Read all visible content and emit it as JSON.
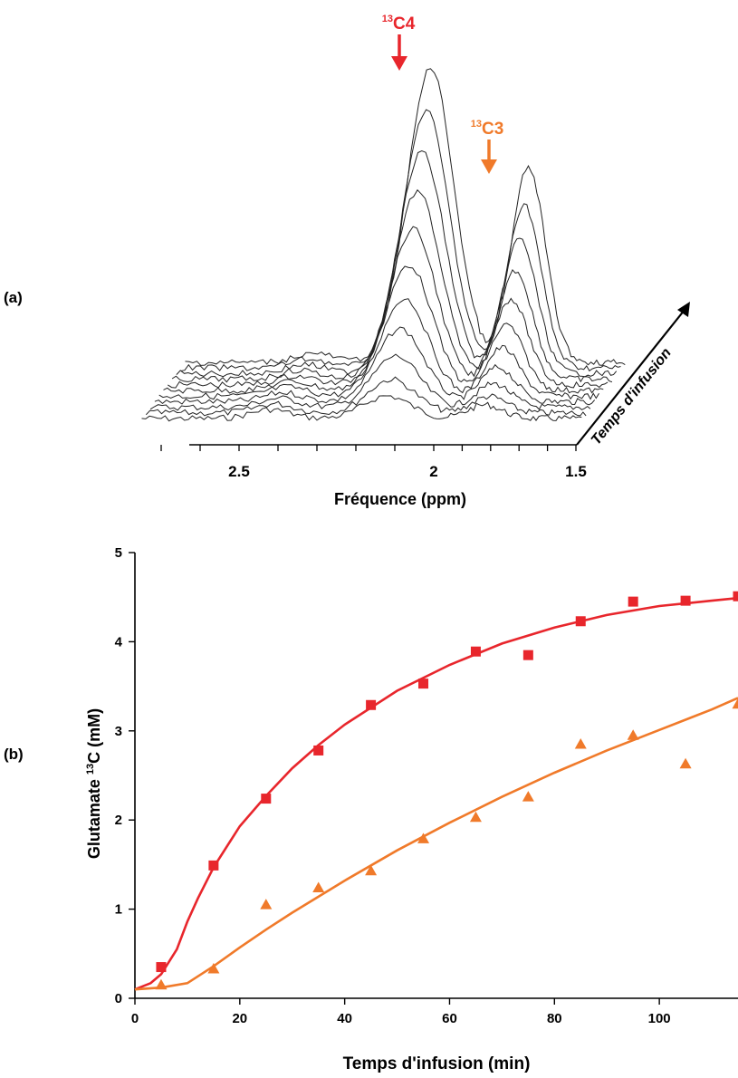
{
  "panel_a": {
    "label": "(a)",
    "peak_c4": {
      "sup": "13",
      "text": "C4",
      "color": "#e8262c"
    },
    "peak_c3": {
      "sup": "13",
      "text": "C3",
      "color": "#f07a2a"
    },
    "time_axis_label": "Temps d'infusion",
    "xlabel": "Fréquence (ppm)",
    "ticks": [
      "2.5",
      "2",
      "1.5"
    ]
  },
  "panel_b": {
    "label": "(b)",
    "ylabel_pre": "Glutamate ",
    "ylabel_sup": "13",
    "ylabel_post": "C (mM)"
  },
  "chart_data": [
    {
      "type": "line",
      "title": "",
      "xlabel": "Fréquence (ppm)",
      "x_ticks": [
        "2.5",
        "2",
        "1.5"
      ],
      "x_reversed": true,
      "xlim": [
        2.75,
        1.5
      ],
      "z_axis_label": "Temps d'infusion",
      "annotations": [
        "13C4",
        "13C3"
      ],
      "peaks_ppm": {
        "C4": 2.07,
        "C3": 1.75
      },
      "n_spectra": 11
    },
    {
      "type": "scatter",
      "title": "",
      "xlabel": "Temps d'infusion (min)",
      "ylabel": "Glutamate 13C (mM)",
      "xlim": [
        0,
        115
      ],
      "ylim": [
        0,
        5
      ],
      "x_ticks": [
        0,
        20,
        40,
        60,
        80,
        100
      ],
      "y_ticks": [
        0,
        1,
        2,
        3,
        4,
        5
      ],
      "series": [
        {
          "marker": "square",
          "color": "#e8262c",
          "x": [
            5,
            15,
            25,
            35,
            45,
            55,
            65,
            75,
            85,
            95,
            105,
            115
          ],
          "y": [
            0.35,
            1.49,
            2.24,
            2.78,
            3.29,
            3.53,
            3.89,
            3.85,
            4.23,
            4.45,
            4.46,
            4.51
          ],
          "fit": {
            "x": [
              0,
              3,
              5,
              8,
              10,
              12,
              15,
              20,
              25,
              30,
              35,
              40,
              50,
              60,
              70,
              80,
              90,
              100,
              110,
              115
            ],
            "y": [
              0.1,
              0.17,
              0.27,
              0.55,
              0.86,
              1.12,
              1.47,
              1.93,
              2.27,
              2.58,
              2.84,
              3.07,
              3.45,
              3.74,
              3.98,
              4.16,
              4.3,
              4.4,
              4.46,
              4.49
            ]
          }
        },
        {
          "marker": "triangle",
          "color": "#f07a2a",
          "x": [
            5,
            15,
            25,
            35,
            45,
            55,
            65,
            75,
            85,
            95,
            105,
            115
          ],
          "y": [
            0.15,
            0.33,
            1.05,
            1.24,
            1.43,
            1.79,
            2.03,
            2.26,
            2.85,
            2.95,
            2.63,
            3.3
          ],
          "fit": {
            "x": [
              0,
              5,
              10,
              15,
              20,
              25,
              30,
              40,
              50,
              60,
              70,
              80,
              90,
              100,
              110,
              115
            ],
            "y": [
              0.1,
              0.12,
              0.17,
              0.36,
              0.57,
              0.77,
              0.96,
              1.32,
              1.66,
              1.97,
              2.26,
              2.53,
              2.78,
              3.01,
              3.24,
              3.37
            ]
          }
        }
      ]
    }
  ]
}
